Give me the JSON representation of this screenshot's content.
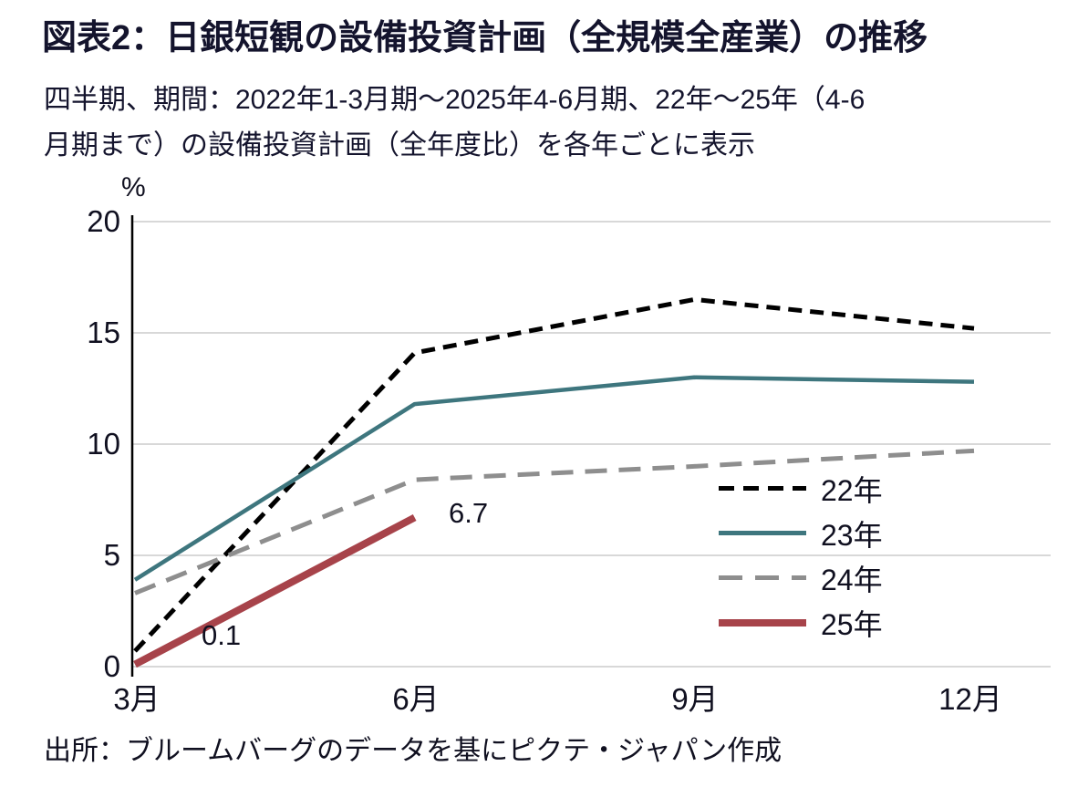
{
  "header": {
    "title": "図表2：日銀短観の設備投資計画（全規模全産業）の推移",
    "subtitle_line1": "四半期、期間：2022年1-3月期～2025年4-6月期、22年～25年（4-6",
    "subtitle_line2": "月期まで）の設備投資計画（全年度比）を各年ごとに表示"
  },
  "footer": {
    "source": "出所：ブルームバーグのデータを基にピクテ・ジャパン作成"
  },
  "chart_data": {
    "type": "line",
    "title": "図表2：日銀短観の設備投資計画（全規模全産業）の推移",
    "xlabel": "",
    "ylabel": "%",
    "ylim": [
      0,
      20
    ],
    "y_ticks": [
      20,
      15,
      10,
      5,
      0
    ],
    "categories": [
      "3月",
      "6月",
      "9月",
      "12月"
    ],
    "grid": "horizontal",
    "legend_position": "right-center",
    "series": [
      {
        "name": "22年",
        "color": "#000000",
        "dash": "short-dash",
        "width": 5,
        "values": [
          0.7,
          14.1,
          16.5,
          15.2
        ]
      },
      {
        "name": "23年",
        "color": "#3E767E",
        "dash": "solid",
        "width": 4.5,
        "values": [
          3.9,
          11.8,
          13.0,
          12.8
        ]
      },
      {
        "name": "24年",
        "color": "#8E8E8E",
        "dash": "long-dash",
        "width": 5,
        "values": [
          3.3,
          8.4,
          9.0,
          9.7
        ]
      },
      {
        "name": "25年",
        "color": "#A7434A",
        "dash": "solid",
        "width": 8,
        "values": [
          0.1,
          6.7
        ]
      }
    ],
    "annotations": [
      {
        "text": "6.7",
        "series": "25年",
        "category": "6月",
        "value": 6.7
      },
      {
        "text": "0.1",
        "series": "25年",
        "category": "3月",
        "value": 0.1
      }
    ]
  }
}
